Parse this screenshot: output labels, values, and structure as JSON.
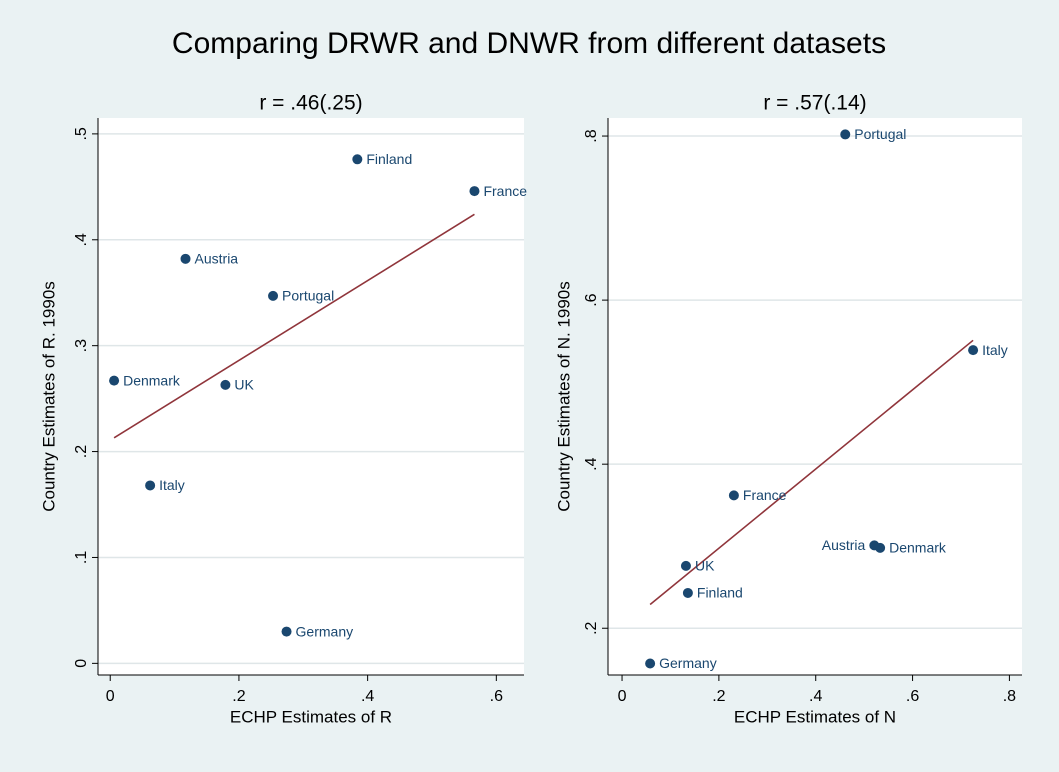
{
  "title": "Comparing DRWR and DNWR from different datasets",
  "chart_data": [
    {
      "type": "scatter",
      "title": "r = .46(.25)",
      "x_label": "ECHP Estimates of R",
      "y_label": "Country Estimates of R. 1990s",
      "color": "#1a476f",
      "fit_color": "#90353b",
      "grid": true,
      "xlim": [
        -0.019,
        0.643
      ],
      "ylim": [
        -0.011,
        0.515
      ],
      "xticks": [
        0,
        {
          "value": 0.2,
          "label": ".2"
        },
        {
          "value": 0.4,
          "label": ".4"
        },
        {
          "value": 0.6,
          "label": ".6"
        }
      ],
      "yticks": [
        0,
        {
          "value": 0.1,
          "label": ".1"
        },
        {
          "value": 0.2,
          "label": ".2"
        },
        {
          "value": 0.3,
          "label": ".3"
        },
        {
          "value": 0.4,
          "label": ".4"
        },
        {
          "value": 0.5,
          "label": ".5"
        }
      ],
      "labels": [
        "Finland",
        "France",
        "Austria",
        "Portugal",
        "Denmark",
        "UK",
        "Italy",
        "Germany"
      ],
      "label_side": [
        "right",
        "right",
        "right",
        "right",
        "right",
        "right",
        "right",
        "right"
      ],
      "x": [
        0.384,
        0.566,
        0.117,
        0.253,
        0.006,
        0.179,
        0.062,
        0.274
      ],
      "y": [
        0.476,
        0.446,
        0.382,
        0.347,
        0.267,
        0.263,
        0.168,
        0.03
      ],
      "fit": {
        "x": [
          0.006,
          0.566
        ],
        "y": [
          0.213,
          0.424
        ]
      }
    },
    {
      "type": "scatter",
      "title": "r = .57(.14)",
      "x_label": "ECHP Estimates of N",
      "y_label": "Country Estimates of N. 1990s",
      "color": "#1a476f",
      "fit_color": "#90353b",
      "grid": true,
      "xlim": [
        -0.029,
        0.826
      ],
      "ylim": [
        0.143,
        0.822
      ],
      "xticks": [
        0,
        {
          "value": 0.2,
          "label": ".2"
        },
        {
          "value": 0.4,
          "label": ".4"
        },
        {
          "value": 0.6,
          "label": ".6"
        },
        {
          "value": 0.8,
          "label": ".8"
        }
      ],
      "yticks": [
        {
          "value": 0.2,
          "label": ".2"
        },
        {
          "value": 0.4,
          "label": ".4"
        },
        {
          "value": 0.6,
          "label": ".6"
        },
        {
          "value": 0.8,
          "label": ".8"
        }
      ],
      "labels": [
        "Portugal",
        "Italy",
        "France",
        "Austria",
        "Denmark",
        "UK",
        "Finland",
        "Germany"
      ],
      "label_side": [
        "right",
        "right",
        "right",
        "left",
        "right",
        "right",
        "right",
        "right"
      ],
      "x": [
        0.461,
        0.725,
        0.231,
        0.521,
        0.533,
        0.132,
        0.136,
        0.058
      ],
      "y": [
        0.802,
        0.539,
        0.362,
        0.301,
        0.298,
        0.276,
        0.243,
        0.157
      ],
      "fit": {
        "x": [
          0.058,
          0.725
        ],
        "y": [
          0.229,
          0.551
        ]
      }
    }
  ]
}
